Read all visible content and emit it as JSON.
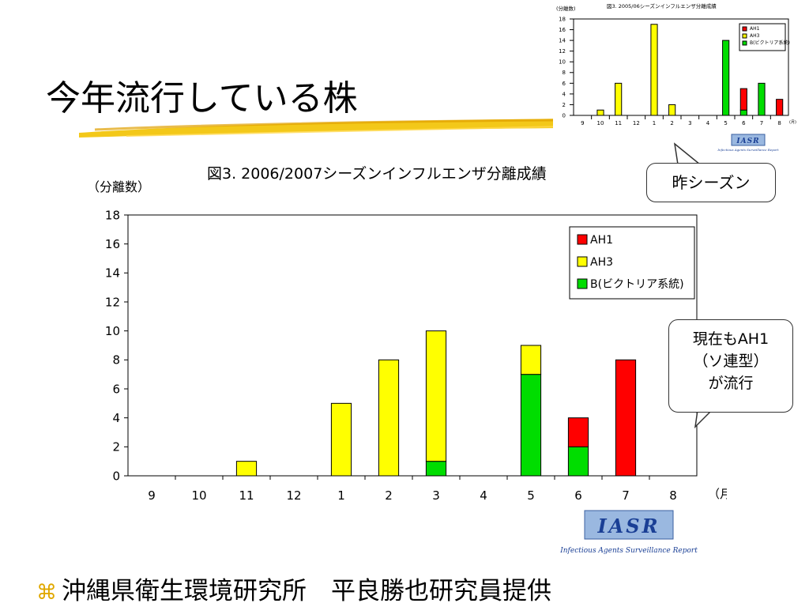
{
  "slide": {
    "title": "今年流行している株",
    "footer_bullet": "⌘",
    "footer": "沖縄県衛生環境研究所　平良勝也研究員提供",
    "callout_prev_season": "昨シーズン",
    "callout_current_lines": [
      "現在もAH1",
      "（ソ連型）",
      "が流行"
    ]
  },
  "chart_data": [
    {
      "type": "bar",
      "stacked": true,
      "title": "図3. 2006/2007シーズンインフルエンザ分離成績",
      "ylabel": "（分離数）",
      "xlabel": "（月）",
      "categories": [
        "9",
        "10",
        "11",
        "12",
        "1",
        "2",
        "3",
        "4",
        "5",
        "6",
        "7",
        "8"
      ],
      "ylim": [
        0,
        18
      ],
      "yticks": [
        0,
        2,
        4,
        6,
        8,
        10,
        12,
        14,
        16,
        18
      ],
      "series": [
        {
          "name": "B(ビクトリア系統)",
          "color": "#00dd00",
          "values": [
            0,
            0,
            0,
            0,
            0,
            0,
            1,
            0,
            7,
            2,
            0,
            0
          ]
        },
        {
          "name": "AH3",
          "color": "#ffff00",
          "values": [
            0,
            0,
            1,
            0,
            5,
            8,
            9,
            0,
            2,
            0,
            0,
            0
          ]
        },
        {
          "name": "AH1",
          "color": "#ff0000",
          "values": [
            0,
            0,
            0,
            0,
            0,
            0,
            0,
            0,
            0,
            2,
            8,
            0
          ]
        }
      ],
      "legend_order": [
        "AH1",
        "AH3",
        "B(ビクトリア系統)"
      ],
      "legend_labels": [
        "AH1",
        "AH3",
        "B(ビクトリア系統)"
      ],
      "legend_position": "top-right",
      "logo_text": "IASR",
      "logo_subtitle": "Infectious Agents Surveillance Report"
    },
    {
      "type": "bar",
      "stacked": true,
      "title": "図3. 2005/06シーズンインフルエンザ分離成績",
      "ylabel": "(分離数)",
      "xlabel": "(月)",
      "categories": [
        "9",
        "10",
        "11",
        "12",
        "1",
        "2",
        "3",
        "4",
        "5",
        "6",
        "7",
        "8"
      ],
      "ylim": [
        0,
        18
      ],
      "yticks": [
        0,
        2,
        4,
        6,
        8,
        10,
        12,
        14,
        16,
        18
      ],
      "series": [
        {
          "name": "B(ビクトリア系統)",
          "color": "#00dd00",
          "values": [
            0,
            0,
            0,
            0,
            0,
            0,
            0,
            0,
            14,
            1,
            6,
            0
          ]
        },
        {
          "name": "AH3",
          "color": "#ffff00",
          "values": [
            0,
            1,
            6,
            0,
            17,
            2,
            0,
            0,
            0,
            0,
            0,
            0
          ]
        },
        {
          "name": "AH1",
          "color": "#ff0000",
          "values": [
            0,
            0,
            0,
            0,
            0,
            0,
            0,
            0,
            0,
            4,
            0,
            3
          ]
        }
      ],
      "legend_order": [
        "AH1",
        "AH3",
        "B(ビクトリア系統)"
      ],
      "legend_labels": [
        "AH1",
        "AH3",
        "B(ビクトリア系統)"
      ],
      "legend_position": "top-right",
      "logo_text": "IASR",
      "logo_subtitle": "Infectious Agents Surveillance Report"
    }
  ]
}
